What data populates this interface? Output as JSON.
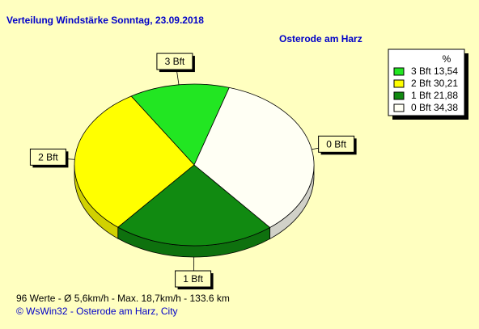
{
  "chart_data": {
    "type": "pie",
    "title": "Verteilung Windstärke  Sonntag, 23.09.2018",
    "subtitle": "Osterode am Harz",
    "legend_title": "%",
    "categories": [
      "3 Bft",
      "2 Bft",
      "1 Bft",
      "0 Bft"
    ],
    "values": [
      13.54,
      30.21,
      21.88,
      34.38
    ],
    "value_labels": [
      "13,54",
      "30,21",
      "21,88",
      "34,38"
    ],
    "colors": [
      "#22e622",
      "#ffff00",
      "#118a11",
      "#fffff4"
    ],
    "legend": "top-right"
  },
  "footer": {
    "stats": "96 Werte   -   Ø 5,6km/h  -  Max. 18,7km/h   -   133.6 km",
    "credit": "© WsWin32  -  Osterode am Harz, City"
  }
}
